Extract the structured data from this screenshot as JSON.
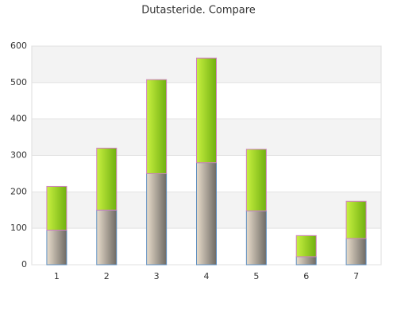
{
  "chart_data": {
    "type": "stacked-bar",
    "title": "Dutasteride. Compare",
    "categories": [
      "1",
      "2",
      "3",
      "4",
      "5",
      "6",
      "7"
    ],
    "series": [
      {
        "color": "#c8b8a4",
        "values": [
          95,
          150,
          250,
          280,
          148,
          22,
          72
        ]
      },
      {
        "color": "#a8e030",
        "values": [
          120,
          170,
          258,
          287,
          169,
          58,
          102
        ]
      }
    ],
    "ylim": [
      0,
      600
    ],
    "yticks": [
      0,
      100,
      200,
      300,
      400,
      500,
      600
    ],
    "grid": true
  }
}
